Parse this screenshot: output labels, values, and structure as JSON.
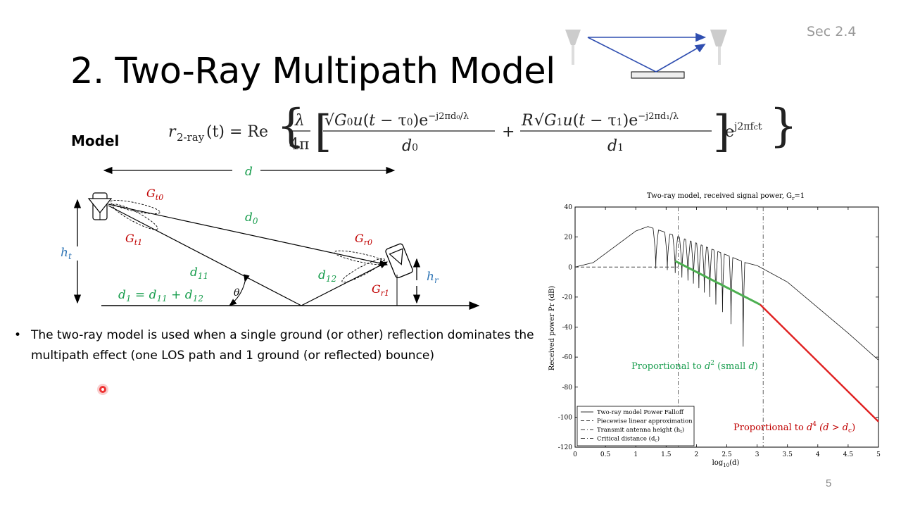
{
  "slide": {
    "title": "2. Two-Ray Multipath Model",
    "section": "Sec 2.4",
    "page_number": "5",
    "model_label": "Model",
    "formula_lhs": "r",
    "formula_lhs_sub": "2-ray",
    "formula_lhs_arg": "(t) = Re",
    "bullet": "The two-ray model is used when a single ground (or other) reflection dominates the multipath effect (one LOS path and 1 ground (or reflected) bounce)"
  },
  "geometry_labels": {
    "d": "d",
    "d0": "d",
    "d0_sub": "0",
    "d11": "d",
    "d11_sub": "11",
    "d12": "d",
    "d12_sub": "12",
    "d1_eq": "d",
    "d1_eq_rest": "= d",
    "ht": "h",
    "ht_sub": "t",
    "hr": "h",
    "hr_sub": "r",
    "gt0": "G",
    "gt0_sub": "t0",
    "gt1": "G",
    "gt1_sub": "t1",
    "gr0": "G",
    "gr0_sub": "r0",
    "gr1": "G",
    "gr1_sub": "r1",
    "theta": "θ"
  },
  "colors": {
    "green": "#1a9e4f",
    "red": "#c00000",
    "blue": "#2e74b5",
    "arrow_blue": "#2f4eb0"
  },
  "chart_data": {
    "type": "line",
    "title": "Two-ray model, received signal power, G",
    "title_sub": "r",
    "title_suffix": "=1",
    "xlabel": "log",
    "xlabel_sub": "10",
    "xlabel_suffix": "(d)",
    "ylabel": "Received power Pr (dB)",
    "xlim": [
      0,
      5
    ],
    "ylim": [
      -120,
      40
    ],
    "xticks": [
      "0",
      "0.5",
      "1",
      "1.5",
      "2",
      "2.5",
      "3",
      "3.5",
      "4",
      "4.5",
      "5"
    ],
    "yticks": [
      "40",
      "20",
      "0",
      "-20",
      "-40",
      "-60",
      "-80",
      "-100",
      "-120"
    ],
    "legend": [
      "Two-ray model Power Falloff",
      "Piecewise linear approximation",
      "Transmit antenna height (h",
      "Critical distance (d"
    ],
    "legend_subs": [
      "",
      "",
      "t",
      "c"
    ],
    "legend_suffix": [
      "",
      "",
      ")",
      ")"
    ],
    "legend_location": "lower-left",
    "annotation_green": "Proportional to",
    "annotation_green_rest": "(small",
    "annotation_red": "Proportional to",
    "annotation_red_rest": "(d > d",
    "vlines": [
      1.7,
      3.1
    ],
    "series": [
      {
        "name": "Two-ray model Power Falloff",
        "envelope": [
          [
            0,
            0
          ],
          [
            0.3,
            3
          ],
          [
            0.7,
            15
          ],
          [
            1.0,
            24
          ],
          [
            1.2,
            27
          ],
          [
            1.5,
            23
          ],
          [
            2.0,
            16
          ],
          [
            2.5,
            8
          ],
          [
            2.8,
            3
          ],
          [
            3.0,
            1
          ],
          [
            3.5,
            -10
          ],
          [
            4.0,
            -27
          ],
          [
            4.5,
            -44
          ],
          [
            5.0,
            -62
          ]
        ]
      },
      {
        "name": "Piecewise linear approximation",
        "points": [
          [
            0,
            0
          ],
          [
            1.7,
            0
          ],
          [
            1.7,
            3
          ],
          [
            3.05,
            -25
          ],
          [
            5.0,
            -103
          ]
        ]
      },
      {
        "name": "Proportional to d^2",
        "points": [
          [
            1.65,
            4
          ],
          [
            3.05,
            -25
          ]
        ]
      },
      {
        "name": "Proportional to d^4",
        "points": [
          [
            3.05,
            -25
          ],
          [
            5.0,
            -103
          ]
        ]
      }
    ]
  }
}
